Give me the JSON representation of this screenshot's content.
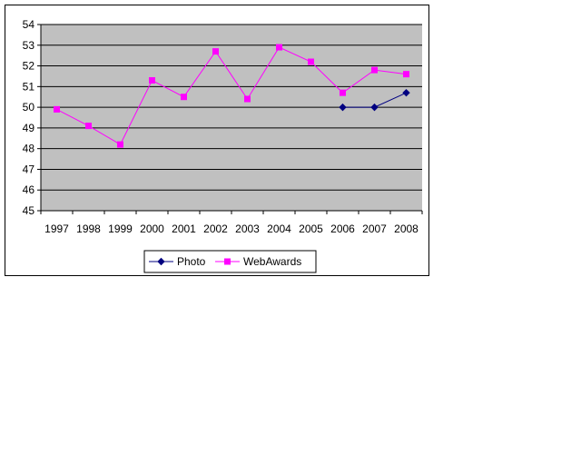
{
  "chart_data": {
    "type": "line",
    "title": "",
    "xlabel": "",
    "ylabel": "",
    "categories": [
      "1997",
      "1998",
      "1999",
      "2000",
      "2001",
      "2002",
      "2003",
      "2004",
      "2005",
      "2006",
      "2007",
      "2008"
    ],
    "ylim": [
      45,
      54
    ],
    "yticks": [
      "45",
      "46",
      "47",
      "48",
      "49",
      "50",
      "51",
      "52",
      "53",
      "54"
    ],
    "grid": "horizontal major gridlines",
    "legend_position": "bottom",
    "plot_background": "#c0c0c0",
    "series": [
      {
        "name": "Photo",
        "color": "#000080",
        "marker": "diamond",
        "values": [
          null,
          null,
          null,
          null,
          null,
          null,
          null,
          null,
          null,
          50.0,
          50.0,
          50.7
        ]
      },
      {
        "name": "WebAwards",
        "color": "#ff00ff",
        "marker": "square",
        "values": [
          49.9,
          49.1,
          48.2,
          51.3,
          50.5,
          52.7,
          50.4,
          52.9,
          52.2,
          50.7,
          51.8,
          51.6
        ]
      }
    ]
  }
}
